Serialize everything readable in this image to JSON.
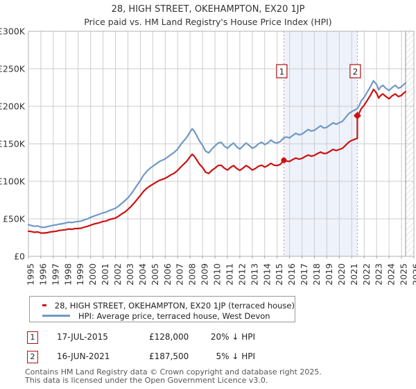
{
  "title": "28, HIGH STREET, OKEHAMPTON, EX20 1JP",
  "subtitle": "Price paid vs. HM Land Registry's House Price Index (HPI)",
  "colors": {
    "price_paid_line": "#cc1111",
    "hpi_line": "#6f98c6",
    "sale_dotted_line": "#f28080",
    "between_sales_shade": "#eef2fb",
    "grid": "#cccccc",
    "plot_border": "#b0b0b0",
    "hatch": "#c8c8c8",
    "hatch_edge": "#909090",
    "badge_border": "#aa1111",
    "axis_text": "#333333"
  },
  "chart_data": {
    "type": "line",
    "title": "28, HIGH STREET, OKEHAMPTON, EX20 1JP — Price paid vs. HPI",
    "x_axis": {
      "min": 1995,
      "max": 2026,
      "tick_labels": [
        "1995",
        "1996",
        "1997",
        "1998",
        "1999",
        "2000",
        "2001",
        "2002",
        "2003",
        "2004",
        "2005",
        "2006",
        "2007",
        "2008",
        "2009",
        "2010",
        "2011",
        "2012",
        "2013",
        "2014",
        "2015",
        "2016",
        "2017",
        "2018",
        "2019",
        "2020",
        "2021",
        "2022",
        "2023",
        "2024",
        "2025",
        "2026"
      ]
    },
    "y_axis": {
      "min": 0,
      "max": 300000,
      "unit": "GBP",
      "tick_values_k": [
        0,
        50,
        100,
        150,
        200,
        250,
        300
      ],
      "tick_labels": [
        "£0",
        "£50K",
        "£100K",
        "£150K",
        "£200K",
        "£250K",
        "£300K"
      ]
    },
    "grid": true,
    "legend_position": "bottom",
    "hatch_future_from_year": 2025.33,
    "shaded_span": {
      "from": 2015.54,
      "to": 2021.45
    },
    "series": [
      {
        "name": "28, HIGH STREET, OKEHAMPTON, EX20 1JP (terraced house)",
        "color": "#cc1111",
        "unit": "GBP_thousands",
        "points": [
          [
            1995.0,
            33.5
          ],
          [
            1995.25,
            33
          ],
          [
            1995.5,
            32
          ],
          [
            1995.75,
            32.5
          ],
          [
            1996.0,
            31
          ],
          [
            1996.25,
            31
          ],
          [
            1996.5,
            31.5
          ],
          [
            1996.75,
            32.5
          ],
          [
            1997.0,
            33
          ],
          [
            1997.25,
            33.5
          ],
          [
            1997.5,
            34.5
          ],
          [
            1997.75,
            35
          ],
          [
            1998.0,
            35.5
          ],
          [
            1998.25,
            36.5
          ],
          [
            1998.5,
            36
          ],
          [
            1998.75,
            37
          ],
          [
            1999.0,
            37
          ],
          [
            1999.25,
            37.5
          ],
          [
            1999.5,
            39
          ],
          [
            1999.75,
            40
          ],
          [
            2000.0,
            41.5
          ],
          [
            2000.25,
            43
          ],
          [
            2000.5,
            44
          ],
          [
            2000.75,
            45
          ],
          [
            2001.0,
            46.5
          ],
          [
            2001.25,
            47
          ],
          [
            2001.5,
            49
          ],
          [
            2001.75,
            50
          ],
          [
            2002.0,
            51
          ],
          [
            2002.25,
            53.5
          ],
          [
            2002.5,
            56.5
          ],
          [
            2002.75,
            59
          ],
          [
            2003.0,
            62.5
          ],
          [
            2003.25,
            66.5
          ],
          [
            2003.5,
            71
          ],
          [
            2003.75,
            76
          ],
          [
            2004.0,
            81
          ],
          [
            2004.25,
            86.5
          ],
          [
            2004.5,
            90.5
          ],
          [
            2004.75,
            93.5
          ],
          [
            2005.0,
            96
          ],
          [
            2005.25,
            98.5
          ],
          [
            2005.5,
            101
          ],
          [
            2005.75,
            102.5
          ],
          [
            2006.0,
            104
          ],
          [
            2006.25,
            106.5
          ],
          [
            2006.5,
            109
          ],
          [
            2006.75,
            111
          ],
          [
            2007.0,
            114.5
          ],
          [
            2007.25,
            119
          ],
          [
            2007.5,
            123
          ],
          [
            2007.75,
            127
          ],
          [
            2008.0,
            133
          ],
          [
            2008.17,
            136
          ],
          [
            2008.33,
            133.5
          ],
          [
            2008.5,
            129.5
          ],
          [
            2008.75,
            123
          ],
          [
            2009.0,
            118.5
          ],
          [
            2009.25,
            112
          ],
          [
            2009.5,
            110.5
          ],
          [
            2009.75,
            114.5
          ],
          [
            2010.0,
            117.5
          ],
          [
            2010.25,
            121
          ],
          [
            2010.5,
            121.5
          ],
          [
            2010.75,
            117.5
          ],
          [
            2011.0,
            115
          ],
          [
            2011.25,
            118.5
          ],
          [
            2011.5,
            121
          ],
          [
            2011.75,
            117
          ],
          [
            2012.0,
            114.5
          ],
          [
            2012.25,
            117.5
          ],
          [
            2012.5,
            121
          ],
          [
            2012.75,
            118.5
          ],
          [
            2013.0,
            115
          ],
          [
            2013.25,
            117
          ],
          [
            2013.5,
            120
          ],
          [
            2013.75,
            121.5
          ],
          [
            2014.0,
            119
          ],
          [
            2014.25,
            121
          ],
          [
            2014.5,
            124
          ],
          [
            2014.75,
            121.5
          ],
          [
            2015.0,
            121
          ],
          [
            2015.25,
            122.5
          ],
          [
            2015.54,
            128
          ],
          [
            2015.75,
            127
          ],
          [
            2016.0,
            126.5
          ],
          [
            2016.25,
            129
          ],
          [
            2016.5,
            131
          ],
          [
            2016.75,
            129.5
          ],
          [
            2017.0,
            130.5
          ],
          [
            2017.25,
            133
          ],
          [
            2017.5,
            135
          ],
          [
            2017.75,
            133.5
          ],
          [
            2018.0,
            134.5
          ],
          [
            2018.25,
            137
          ],
          [
            2018.5,
            139
          ],
          [
            2018.75,
            137
          ],
          [
            2019.0,
            137.5
          ],
          [
            2019.25,
            140
          ],
          [
            2019.5,
            142.5
          ],
          [
            2019.75,
            141
          ],
          [
            2020.0,
            142.5
          ],
          [
            2020.25,
            144
          ],
          [
            2020.5,
            148
          ],
          [
            2020.75,
            152
          ],
          [
            2021.0,
            154.5
          ],
          [
            2021.25,
            156
          ],
          [
            2021.45,
            157.5
          ],
          [
            2021.45,
            187.5
          ],
          [
            2021.6,
            191
          ],
          [
            2021.75,
            196.5
          ],
          [
            2022.0,
            201.5
          ],
          [
            2022.25,
            208
          ],
          [
            2022.5,
            214.5
          ],
          [
            2022.75,
            222.5
          ],
          [
            2023.0,
            217.5
          ],
          [
            2023.17,
            211
          ],
          [
            2023.33,
            214.5
          ],
          [
            2023.5,
            216.5
          ],
          [
            2023.75,
            213
          ],
          [
            2024.0,
            210
          ],
          [
            2024.25,
            214
          ],
          [
            2024.5,
            216.5
          ],
          [
            2024.75,
            213
          ],
          [
            2025.0,
            214.5
          ],
          [
            2025.17,
            217.5
          ],
          [
            2025.33,
            219.5
          ]
        ]
      },
      {
        "name": "HPI: Average price, terraced house, West Devon",
        "color": "#6f98c6",
        "unit": "GBP_thousands",
        "points": [
          [
            1995.0,
            42
          ],
          [
            1995.25,
            41
          ],
          [
            1995.5,
            40
          ],
          [
            1995.75,
            40.5
          ],
          [
            1996.0,
            39
          ],
          [
            1996.25,
            38.5
          ],
          [
            1996.5,
            39.5
          ],
          [
            1996.75,
            40.5
          ],
          [
            1997.0,
            41.5
          ],
          [
            1997.25,
            42
          ],
          [
            1997.5,
            43
          ],
          [
            1997.75,
            43.5
          ],
          [
            1998.0,
            44.5
          ],
          [
            1998.25,
            45.5
          ],
          [
            1998.5,
            45
          ],
          [
            1998.75,
            46
          ],
          [
            1999.0,
            46.5
          ],
          [
            1999.25,
            47
          ],
          [
            1999.5,
            48.5
          ],
          [
            1999.75,
            50
          ],
          [
            2000.0,
            52
          ],
          [
            2000.25,
            53.5
          ],
          [
            2000.5,
            55
          ],
          [
            2000.75,
            56.5
          ],
          [
            2001.0,
            58
          ],
          [
            2001.25,
            59
          ],
          [
            2001.5,
            61
          ],
          [
            2001.75,
            62.5
          ],
          [
            2002.0,
            64
          ],
          [
            2002.25,
            67
          ],
          [
            2002.5,
            70.5
          ],
          [
            2002.75,
            74
          ],
          [
            2003.0,
            78
          ],
          [
            2003.25,
            83
          ],
          [
            2003.5,
            89
          ],
          [
            2003.75,
            95
          ],
          [
            2004.0,
            101
          ],
          [
            2004.25,
            108
          ],
          [
            2004.5,
            113
          ],
          [
            2004.75,
            117
          ],
          [
            2005.0,
            120
          ],
          [
            2005.25,
            123
          ],
          [
            2005.5,
            126
          ],
          [
            2005.75,
            128
          ],
          [
            2006.0,
            130
          ],
          [
            2006.25,
            133
          ],
          [
            2006.5,
            136
          ],
          [
            2006.75,
            139
          ],
          [
            2007.0,
            143
          ],
          [
            2007.25,
            149
          ],
          [
            2007.5,
            154
          ],
          [
            2007.75,
            159
          ],
          [
            2008.0,
            166
          ],
          [
            2008.17,
            170
          ],
          [
            2008.33,
            167
          ],
          [
            2008.5,
            162
          ],
          [
            2008.75,
            154
          ],
          [
            2009.0,
            148
          ],
          [
            2009.25,
            140
          ],
          [
            2009.5,
            138
          ],
          [
            2009.75,
            143
          ],
          [
            2010.0,
            147
          ],
          [
            2010.25,
            151
          ],
          [
            2010.5,
            152
          ],
          [
            2010.75,
            147
          ],
          [
            2011.0,
            144
          ],
          [
            2011.25,
            148
          ],
          [
            2011.5,
            151
          ],
          [
            2011.75,
            146
          ],
          [
            2012.0,
            143
          ],
          [
            2012.25,
            147
          ],
          [
            2012.5,
            151
          ],
          [
            2012.75,
            148
          ],
          [
            2013.0,
            144
          ],
          [
            2013.25,
            146
          ],
          [
            2013.5,
            150
          ],
          [
            2013.75,
            152
          ],
          [
            2014.0,
            149
          ],
          [
            2014.25,
            151
          ],
          [
            2014.5,
            155
          ],
          [
            2014.75,
            152
          ],
          [
            2015.0,
            151
          ],
          [
            2015.25,
            153
          ],
          [
            2015.54,
            158
          ],
          [
            2015.75,
            159
          ],
          [
            2016.0,
            158
          ],
          [
            2016.25,
            161
          ],
          [
            2016.5,
            164
          ],
          [
            2016.75,
            162
          ],
          [
            2017.0,
            163
          ],
          [
            2017.25,
            166
          ],
          [
            2017.5,
            169
          ],
          [
            2017.75,
            167
          ],
          [
            2018.0,
            168
          ],
          [
            2018.25,
            171
          ],
          [
            2018.5,
            174
          ],
          [
            2018.75,
            171
          ],
          [
            2019.0,
            172
          ],
          [
            2019.25,
            175
          ],
          [
            2019.5,
            178
          ],
          [
            2019.75,
            176
          ],
          [
            2020.0,
            178
          ],
          [
            2020.25,
            180
          ],
          [
            2020.5,
            185
          ],
          [
            2020.75,
            190
          ],
          [
            2021.0,
            193
          ],
          [
            2021.25,
            195
          ],
          [
            2021.45,
            197
          ],
          [
            2021.6,
            201
          ],
          [
            2021.75,
            207
          ],
          [
            2022.0,
            212
          ],
          [
            2022.25,
            219
          ],
          [
            2022.5,
            226
          ],
          [
            2022.75,
            234
          ],
          [
            2023.0,
            229
          ],
          [
            2023.17,
            222
          ],
          [
            2023.33,
            226
          ],
          [
            2023.5,
            228
          ],
          [
            2023.75,
            224
          ],
          [
            2024.0,
            221
          ],
          [
            2024.25,
            225
          ],
          [
            2024.5,
            228
          ],
          [
            2024.75,
            224
          ],
          [
            2025.0,
            226
          ],
          [
            2025.17,
            229
          ],
          [
            2025.33,
            231
          ]
        ]
      }
    ],
    "sales": [
      {
        "label": "1",
        "date": "17-JUL-2015",
        "price": "£128,000",
        "vs_hpi": "20% ↓ HPI",
        "year": 2015.54,
        "value_k": 128,
        "marker": "circle"
      },
      {
        "label": "2",
        "date": "16-JUN-2021",
        "price": "£187,500",
        "vs_hpi": "5% ↓ HPI",
        "year": 2021.45,
        "value_k": 187.5,
        "marker": "diamond"
      }
    ]
  },
  "footer": {
    "line1": "Contains HM Land Registry data © Crown copyright and database right 2025.",
    "line2": "This data is licensed under the Open Government Licence v3.0."
  }
}
